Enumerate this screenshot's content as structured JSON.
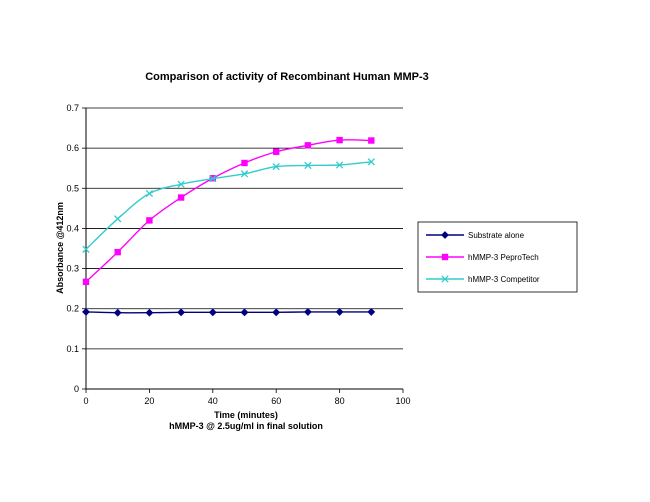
{
  "chart_data": {
    "type": "line",
    "title": "Comparison of activity of Recombinant Human MMP-3",
    "xlabel": "Time (minutes)",
    "xlabel2": "hMMP-3 @ 2.5ug/ml in final solution",
    "ylabel": "Absorbance @412nm",
    "xlim": [
      0,
      100
    ],
    "ylim": [
      0,
      0.7
    ],
    "xticks": [
      "0",
      "20",
      "40",
      "60",
      "80",
      "100"
    ],
    "yticks": [
      "0",
      "0.1",
      "0.2",
      "0.3",
      "0.4",
      "0.5",
      "0.6",
      "0.7"
    ],
    "grid": "horizontal",
    "legend": "right",
    "x": [
      0,
      10,
      20,
      30,
      40,
      50,
      60,
      70,
      80,
      90
    ],
    "series": [
      {
        "name": "Substrate alone",
        "color": "#000080",
        "marker": "diamond",
        "values": [
          0.192,
          0.19,
          0.19,
          0.191,
          0.191,
          0.191,
          0.191,
          0.192,
          0.192,
          0.192
        ]
      },
      {
        "name": "hMMP-3 PeproTech",
        "color": "#FF00FF",
        "marker": "square",
        "values": [
          0.267,
          0.341,
          0.42,
          0.477,
          0.525,
          0.563,
          0.591,
          0.607,
          0.62,
          0.619
        ]
      },
      {
        "name": "hMMP-3 Competitor",
        "color": "#33CCCC",
        "marker": "x",
        "values": [
          0.348,
          0.424,
          0.487,
          0.51,
          0.524,
          0.536,
          0.554,
          0.557,
          0.558,
          0.566
        ]
      }
    ]
  }
}
